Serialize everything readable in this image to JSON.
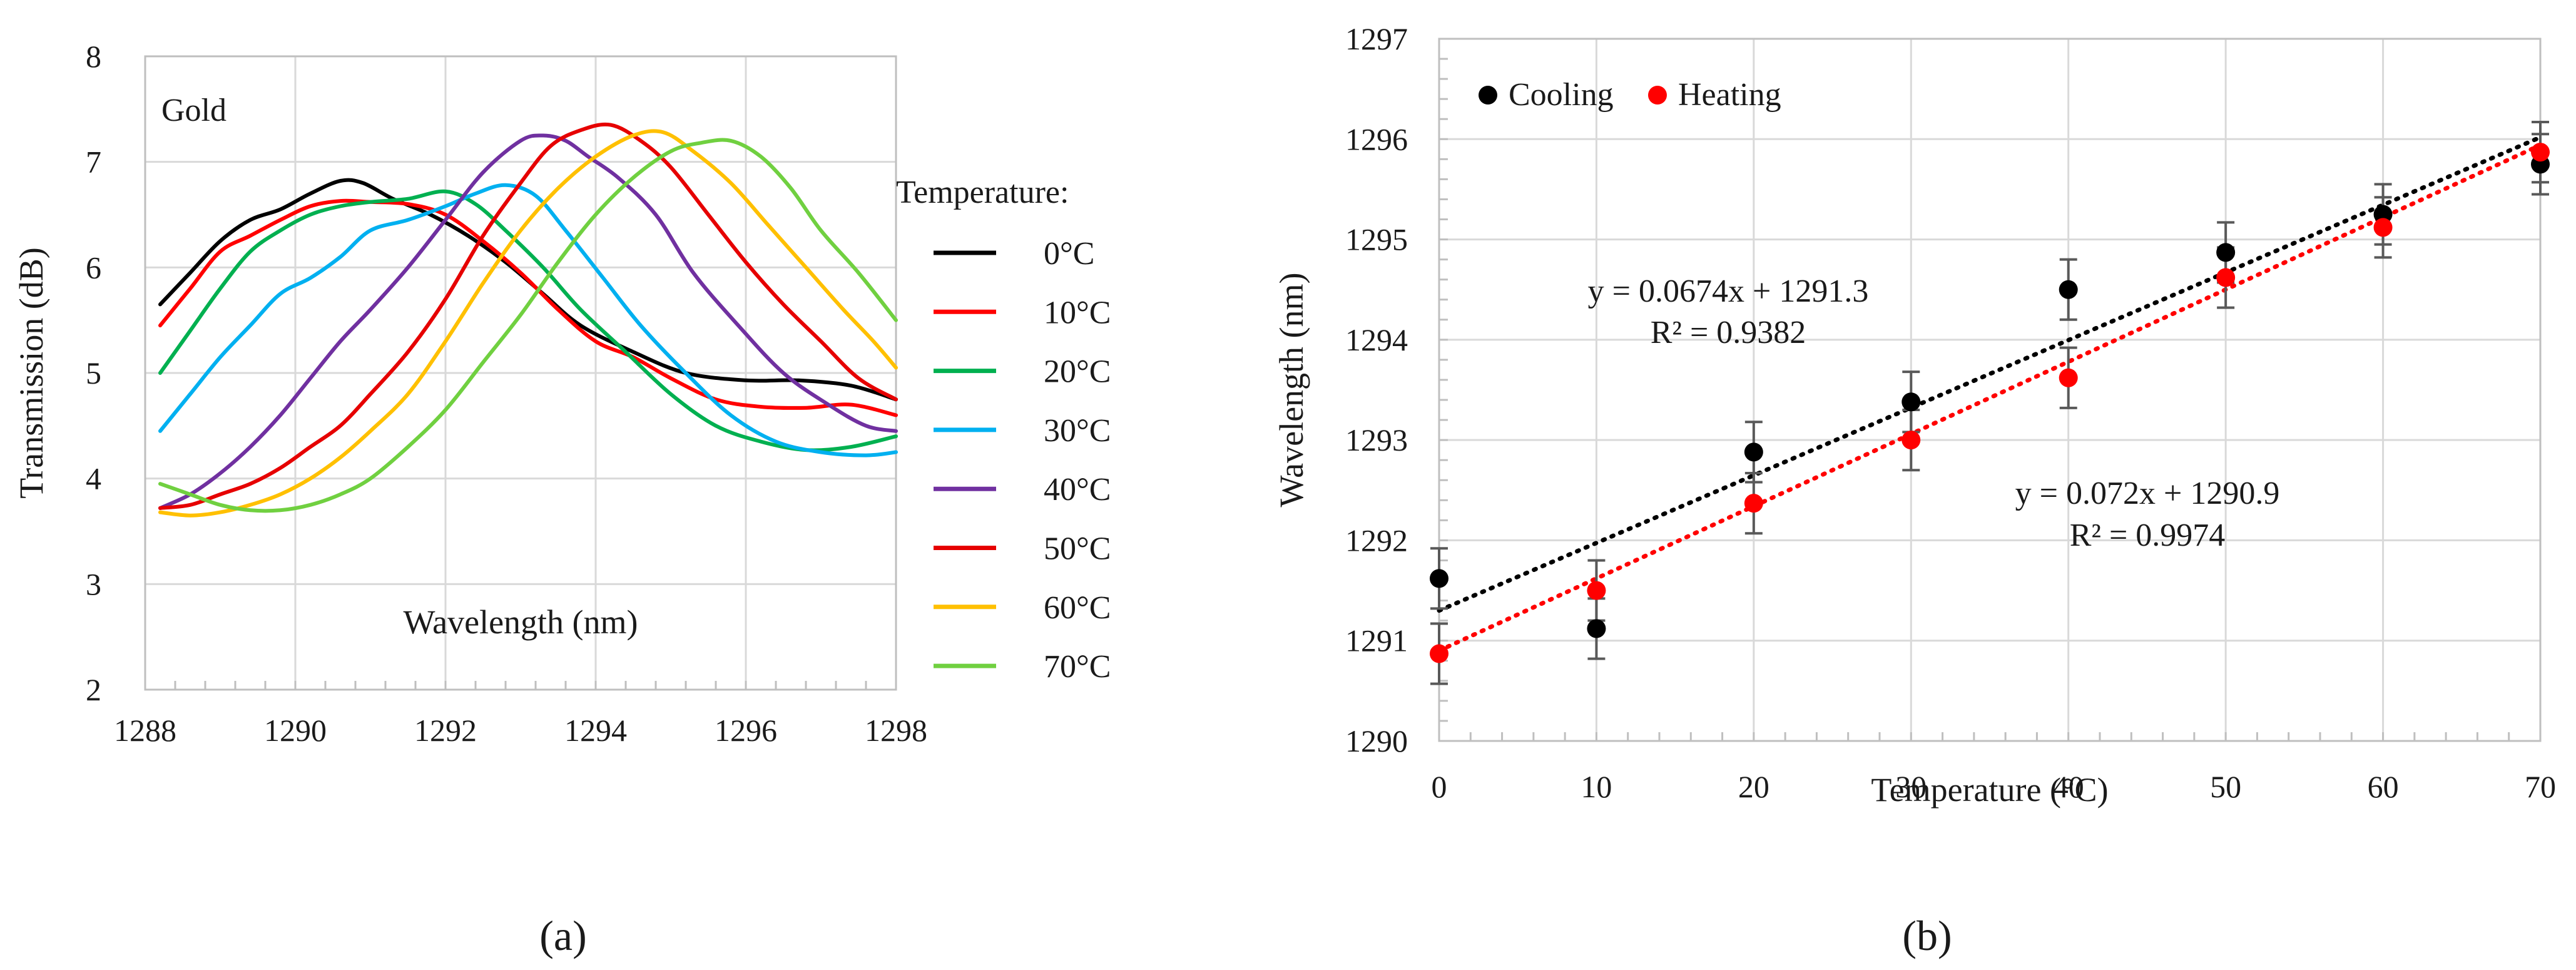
{
  "chart_data": [
    {
      "type": "line",
      "panel_label": "(a)",
      "title": "Gold",
      "xlabel": "Wavelength (nm)",
      "ylabel": "Transmission (dB)",
      "xlim": [
        1288,
        1298
      ],
      "ylim": [
        2,
        8
      ],
      "xticks": [
        1288,
        1290,
        1292,
        1294,
        1296,
        1298
      ],
      "yticks": [
        2,
        3,
        4,
        5,
        6,
        7,
        8
      ],
      "grid": true,
      "legend_title": "Temperature:",
      "legend_position": "right",
      "series": [
        {
          "name": "0°C",
          "color": "#000000",
          "x": [
            1288.2,
            1288.6,
            1289,
            1289.4,
            1289.8,
            1290.2,
            1290.6,
            1290.9,
            1291.3,
            1291.8,
            1292.3,
            1292.8,
            1293.3,
            1293.8,
            1294.5,
            1295.2,
            1296,
            1296.7,
            1297.4,
            1298
          ],
          "y": [
            5.65,
            5.95,
            6.25,
            6.45,
            6.55,
            6.7,
            6.82,
            6.8,
            6.65,
            6.5,
            6.3,
            6.05,
            5.75,
            5.45,
            5.2,
            5.0,
            4.93,
            4.93,
            4.88,
            4.75
          ]
        },
        {
          "name": "10°C",
          "color": "#ff0000",
          "x": [
            1288.2,
            1288.6,
            1289,
            1289.4,
            1289.8,
            1290.2,
            1290.6,
            1291,
            1291.5,
            1292,
            1292.5,
            1293,
            1293.5,
            1294,
            1294.5,
            1295,
            1295.6,
            1296.2,
            1296.8,
            1297.4,
            1298
          ],
          "y": [
            5.45,
            5.8,
            6.15,
            6.3,
            6.45,
            6.58,
            6.63,
            6.62,
            6.6,
            6.5,
            6.25,
            5.95,
            5.6,
            5.3,
            5.15,
            4.95,
            4.75,
            4.68,
            4.67,
            4.7,
            4.6
          ]
        },
        {
          "name": "20°C",
          "color": "#00b050",
          "x": [
            1288.2,
            1288.6,
            1289,
            1289.4,
            1289.8,
            1290.2,
            1290.6,
            1291,
            1291.5,
            1292,
            1292.4,
            1292.8,
            1293.3,
            1293.8,
            1294.4,
            1295,
            1295.6,
            1296.2,
            1296.8,
            1297.4,
            1298
          ],
          "y": [
            5.0,
            5.4,
            5.8,
            6.15,
            6.35,
            6.5,
            6.58,
            6.62,
            6.65,
            6.72,
            6.6,
            6.35,
            6.0,
            5.6,
            5.2,
            4.8,
            4.5,
            4.35,
            4.27,
            4.3,
            4.4
          ]
        },
        {
          "name": "30°C",
          "color": "#00b0f0",
          "x": [
            1288.2,
            1288.6,
            1289,
            1289.4,
            1289.8,
            1290.2,
            1290.6,
            1291,
            1291.5,
            1292,
            1292.4,
            1292.8,
            1293.2,
            1293.6,
            1294.1,
            1294.6,
            1295.2,
            1295.8,
            1296.4,
            1297,
            1297.6,
            1298
          ],
          "y": [
            4.45,
            4.8,
            5.15,
            5.45,
            5.75,
            5.9,
            6.1,
            6.35,
            6.45,
            6.58,
            6.7,
            6.78,
            6.68,
            6.35,
            5.9,
            5.45,
            5.0,
            4.6,
            4.35,
            4.25,
            4.22,
            4.25
          ]
        },
        {
          "name": "40°C",
          "color": "#7030a0",
          "x": [
            1288.2,
            1288.6,
            1289,
            1289.4,
            1289.8,
            1290.2,
            1290.6,
            1291,
            1291.5,
            1292,
            1292.5,
            1293,
            1293.3,
            1293.6,
            1293.9,
            1294.3,
            1294.8,
            1295.3,
            1295.9,
            1296.5,
            1297.1,
            1297.6,
            1298
          ],
          "y": [
            3.72,
            3.85,
            4.05,
            4.3,
            4.6,
            4.95,
            5.3,
            5.6,
            6.0,
            6.45,
            6.9,
            7.2,
            7.25,
            7.2,
            7.05,
            6.85,
            6.5,
            5.95,
            5.45,
            5.0,
            4.7,
            4.5,
            4.45
          ]
        },
        {
          "name": "50°C",
          "color": "#e60000",
          "x": [
            1288.2,
            1288.6,
            1289,
            1289.4,
            1289.8,
            1290.2,
            1290.6,
            1291,
            1291.5,
            1292,
            1292.5,
            1293,
            1293.4,
            1293.8,
            1294.2,
            1294.6,
            1295,
            1295.5,
            1296,
            1296.5,
            1297,
            1297.5,
            1298
          ],
          "y": [
            3.72,
            3.75,
            3.85,
            3.95,
            4.1,
            4.3,
            4.5,
            4.8,
            5.2,
            5.7,
            6.3,
            6.8,
            7.15,
            7.3,
            7.35,
            7.2,
            6.95,
            6.5,
            6.05,
            5.65,
            5.3,
            4.95,
            4.75
          ]
        },
        {
          "name": "60°C",
          "color": "#ffc000",
          "x": [
            1288.2,
            1288.6,
            1289,
            1289.4,
            1289.8,
            1290.2,
            1290.6,
            1291,
            1291.5,
            1292,
            1292.5,
            1293,
            1293.5,
            1294,
            1294.5,
            1294.9,
            1295.3,
            1295.8,
            1296.3,
            1296.8,
            1297.3,
            1297.7,
            1298
          ],
          "y": [
            3.68,
            3.65,
            3.68,
            3.75,
            3.85,
            4.0,
            4.2,
            4.45,
            4.8,
            5.3,
            5.85,
            6.35,
            6.75,
            7.05,
            7.25,
            7.28,
            7.1,
            6.8,
            6.4,
            6.0,
            5.6,
            5.3,
            5.05
          ]
        },
        {
          "name": "70°C",
          "color": "#70d040",
          "x": [
            1288.2,
            1288.6,
            1289,
            1289.4,
            1289.8,
            1290.2,
            1290.6,
            1291,
            1291.5,
            1292,
            1292.5,
            1293,
            1293.5,
            1294,
            1294.5,
            1295,
            1295.4,
            1295.8,
            1296.2,
            1296.6,
            1297,
            1297.5,
            1298
          ],
          "y": [
            3.95,
            3.85,
            3.75,
            3.7,
            3.7,
            3.75,
            3.85,
            4.0,
            4.3,
            4.65,
            5.1,
            5.55,
            6.05,
            6.5,
            6.85,
            7.1,
            7.18,
            7.2,
            7.05,
            6.75,
            6.35,
            5.95,
            5.5
          ]
        }
      ]
    },
    {
      "type": "scatter",
      "panel_label": "(b)",
      "xlabel": "Temperature (°C)",
      "ylabel": "Wavelength (nm)",
      "xlim": [
        0,
        70
      ],
      "ylim": [
        1290,
        1297
      ],
      "xticks": [
        0,
        10,
        20,
        30,
        40,
        50,
        60,
        70
      ],
      "yticks": [
        1290,
        1291,
        1292,
        1293,
        1294,
        1295,
        1296,
        1297
      ],
      "grid": true,
      "legend_position": "top-left",
      "series": [
        {
          "name": "Cooling",
          "color": "#000000",
          "x": [
            0,
            10,
            20,
            30,
            40,
            50,
            60,
            70
          ],
          "y": [
            1291.62,
            1291.12,
            1292.88,
            1293.38,
            1294.5,
            1294.87,
            1295.25,
            1295.75
          ],
          "error": [
            0.3,
            0.3,
            0.3,
            0.3,
            0.3,
            0.3,
            0.3,
            0.3
          ],
          "trendline": {
            "slope": 0.0674,
            "intercept": 1291.3,
            "equation": "y = 0.0674x + 1291.3",
            "r2": "R² = 0.9382"
          }
        },
        {
          "name": "Heating",
          "color": "#ff0000",
          "x": [
            0,
            10,
            20,
            30,
            40,
            50,
            60,
            70
          ],
          "y": [
            1290.87,
            1291.5,
            1292.37,
            1293.0,
            1293.62,
            1294.62,
            1295.12,
            1295.87
          ],
          "error": [
            0.3,
            0.3,
            0.3,
            0.3,
            0.3,
            0.3,
            0.3,
            0.3
          ],
          "trendline": {
            "slope": 0.072,
            "intercept": 1290.9,
            "equation": "y = 0.072x + 1290.9",
            "r2": "R² = 0.9974"
          }
        }
      ]
    }
  ]
}
